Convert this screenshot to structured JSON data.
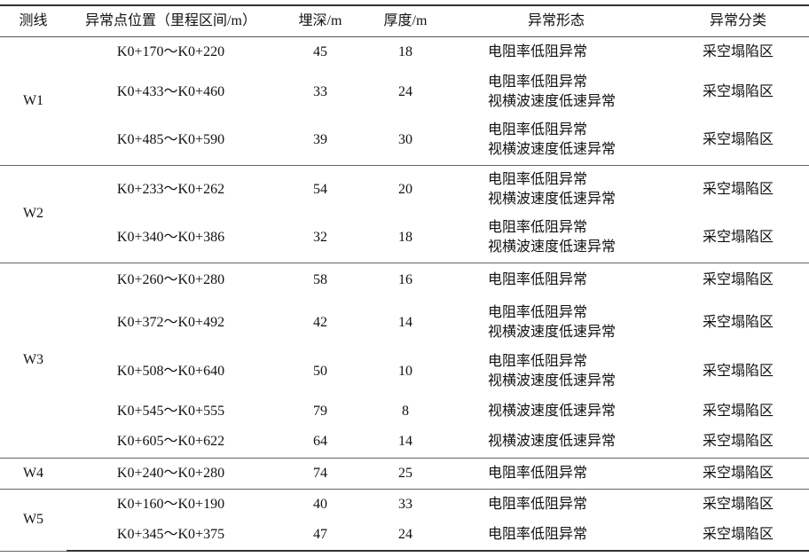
{
  "headers": [
    "测线",
    "异常点位置（里程区间/m）",
    "埋深/m",
    "厚度/m",
    "异常形态",
    "异常分类"
  ],
  "groups": [
    {
      "line": "W1",
      "rows": [
        {
          "range": "K0+170～K0+220",
          "depth": "45",
          "thickness": "18",
          "forms": [
            "电阻率低阻异常"
          ],
          "category": "采空塌陷区"
        },
        {
          "range": "K0+433～K0+460",
          "depth": "33",
          "thickness": "24",
          "forms": [
            "电阻率低阻异常",
            "视横波速度低速异常"
          ],
          "category": "采空塌陷区"
        },
        {
          "range": "K0+485～K0+590",
          "depth": "39",
          "thickness": "30",
          "forms": [
            "电阻率低阻异常",
            "视横波速度低速异常"
          ],
          "category": "采空塌陷区"
        }
      ]
    },
    {
      "line": "W2",
      "rows": [
        {
          "range": "K0+233～K0+262",
          "depth": "54",
          "thickness": "20",
          "forms": [
            "电阻率低阻异常",
            "视横波速度低速异常"
          ],
          "category": "采空塌陷区"
        },
        {
          "range": "K0+340～K0+386",
          "depth": "32",
          "thickness": "18",
          "forms": [
            "电阻率低阻异常",
            "视横波速度低速异常"
          ],
          "category": "采空塌陷区"
        }
      ]
    },
    {
      "line": "W3",
      "rows": [
        {
          "range": "K0+260～K0+280",
          "depth": "58",
          "thickness": "16",
          "forms": [
            "电阻率低阻异常"
          ],
          "category": "采空塌陷区"
        },
        {
          "range": "K0+372～K0+492",
          "depth": "42",
          "thickness": "14",
          "forms": [
            "电阻率低阻异常",
            "视横波速度低速异常"
          ],
          "category": "采空塌陷区"
        },
        {
          "range": "K0+508～K0+640",
          "depth": "50",
          "thickness": "10",
          "forms": [
            "电阻率低阻异常",
            "视横波速度低速异常"
          ],
          "category": "采空塌陷区"
        },
        {
          "range": "K0+545～K0+555",
          "depth": "79",
          "thickness": "8",
          "forms": [
            "视横波速度低速异常"
          ],
          "category": "采空塌陷区"
        },
        {
          "range": "K0+605～K0+622",
          "depth": "64",
          "thickness": "14",
          "forms": [
            "视横波速度低速异常"
          ],
          "category": "采空塌陷区"
        }
      ]
    },
    {
      "line": "W4",
      "rows": [
        {
          "range": "K0+240～K0+280",
          "depth": "74",
          "thickness": "25",
          "forms": [
            "电阻率低阻异常"
          ],
          "category": "采空塌陷区"
        }
      ]
    },
    {
      "line": "W5",
      "rows": [
        {
          "range": "K0+160～K0+190",
          "depth": "40",
          "thickness": "33",
          "forms": [
            "电阻率低阻异常"
          ],
          "category": "采空塌陷区"
        },
        {
          "range": "K0+345～K0+375",
          "depth": "47",
          "thickness": "24",
          "forms": [
            "电阻率低阻异常"
          ],
          "category": "采空塌陷区"
        }
      ]
    }
  ]
}
